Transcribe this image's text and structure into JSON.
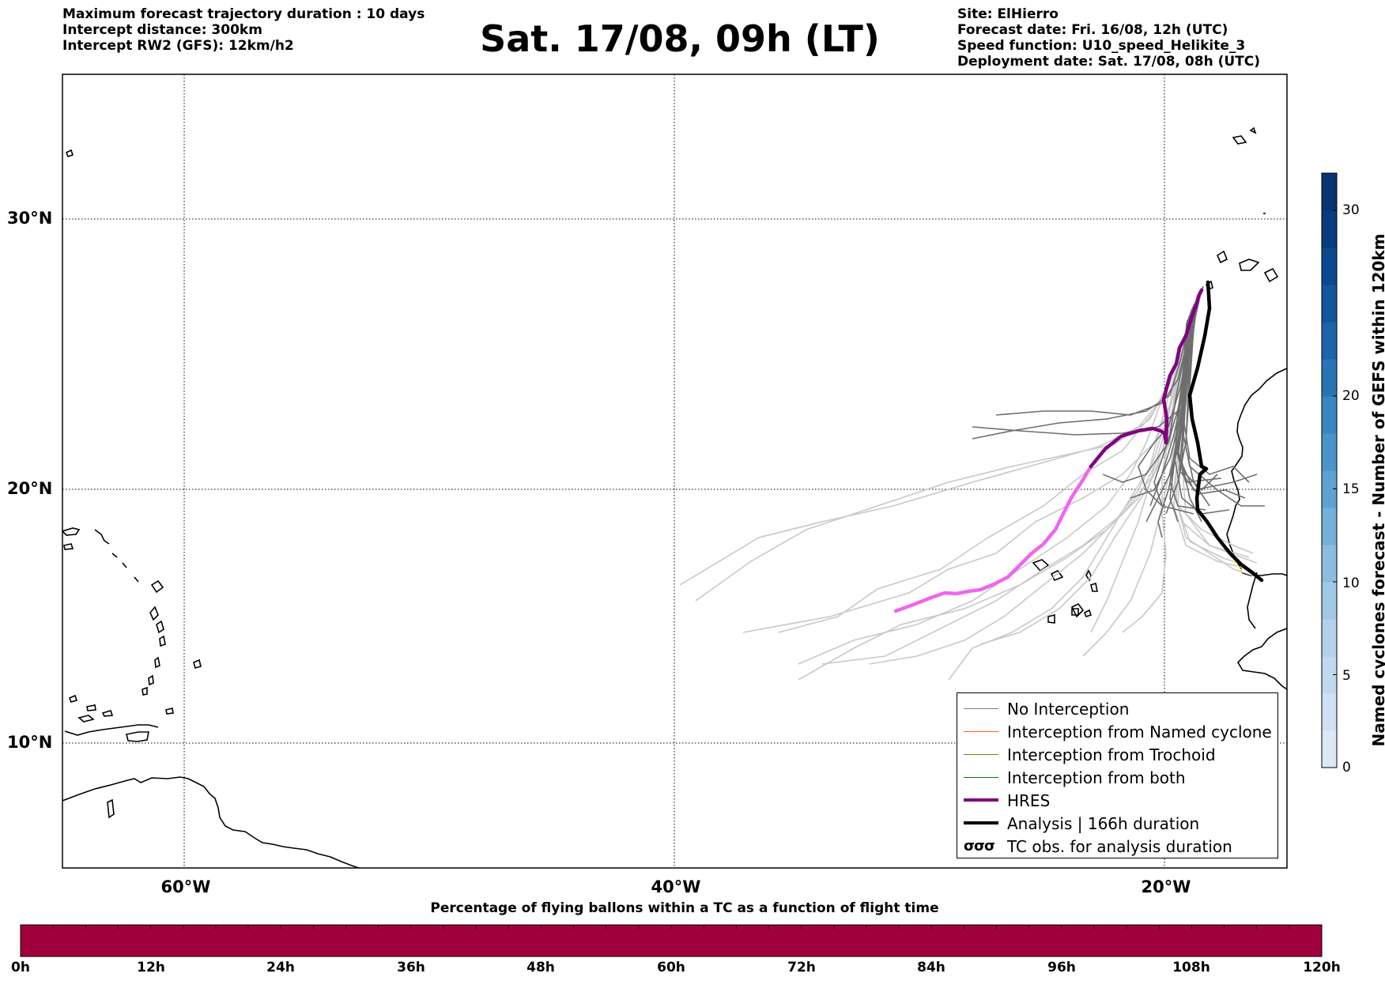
{
  "header": {
    "left_lines": [
      "Maximum forecast trajectory duration : 10 days",
      "Intercept distance: 300km",
      "Intercept RW2 (GFS):  12km/h2"
    ],
    "title": "Sat. 17/08, 09h (LT)",
    "right_lines": [
      "Site: ElHierro",
      "Forecast date: Fri. 16/08, 12h (UTC)",
      "Speed function: U10_speed_Helikite_3",
      "Deployment date: Sat. 17/08, 08h (UTC)"
    ]
  },
  "map": {
    "lon_range": [
      -65,
      -15
    ],
    "lat_range": [
      5,
      35
    ],
    "lat_labels": [
      "30°N",
      "20°N",
      "10°N"
    ],
    "lon_labels": [
      "60°W",
      "40°W",
      "20°W"
    ],
    "gridlines": "dotted",
    "colors": {
      "no_interception": "#6e6e6e",
      "light_track": "#c8c8c8",
      "named_cyclone": "#ff5a1a",
      "trochoid": "#808000",
      "both": "#008000",
      "hres_early": "#800080",
      "hres_late": "#ee66ee",
      "analysis": "#000000"
    }
  },
  "legend": {
    "items": [
      {
        "label": "No Interception",
        "color": "#808080",
        "width": 1
      },
      {
        "label": "Interception from Named cyclone",
        "color": "#ff5a1a",
        "width": 1
      },
      {
        "label": "Interception from Trochoid",
        "color": "#808000",
        "width": 1
      },
      {
        "label": "Interception from both",
        "color": "#008000",
        "width": 1
      },
      {
        "label": "HRES",
        "color": "#800080",
        "width": 4
      },
      {
        "label": "Analysis | 166h duration",
        "color": "#000000",
        "width": 4
      }
    ],
    "tc_obs_symbol": "σσσ",
    "tc_obs_label": "TC obs. for analysis duration"
  },
  "colorbar": {
    "label": "Named cyclones forecast - Number of GEFS within 120km",
    "ticks": [
      "0",
      "5",
      "10",
      "15",
      "20",
      "30"
    ],
    "min": 0,
    "max": 32,
    "bounds": [
      0,
      2,
      4,
      6,
      8,
      10,
      12,
      14,
      16,
      18,
      20,
      22,
      24,
      26,
      28,
      30,
      32
    ],
    "colors": [
      "#dbe8f6",
      "#cfe1f2",
      "#c1d9ee",
      "#b3d2ea",
      "#a1c8e4",
      "#8bbcde",
      "#75b0d8",
      "#5fa2d1",
      "#4b94c9",
      "#3a85c0",
      "#2a74b5",
      "#1d64aa",
      "#13559e",
      "#0c4890",
      "#083c80",
      "#083471"
    ]
  },
  "percent_bar": {
    "title": "Percentage of flying ballons within a TC as a function of flight time",
    "color": "#a0003c",
    "hour_labels": [
      "0h",
      "12h",
      "24h",
      "36h",
      "48h",
      "60h",
      "72h",
      "84h",
      "96h",
      "108h",
      "120h"
    ],
    "values_percent": [
      100,
      100,
      100,
      100,
      100,
      100,
      100,
      100,
      100,
      100,
      100,
      100,
      100,
      100,
      100,
      100,
      100,
      100,
      100,
      100,
      100,
      100,
      100,
      100,
      100,
      100,
      100,
      100,
      100,
      100,
      100,
      100,
      100,
      100,
      100,
      100,
      100,
      100,
      100,
      100
    ]
  }
}
